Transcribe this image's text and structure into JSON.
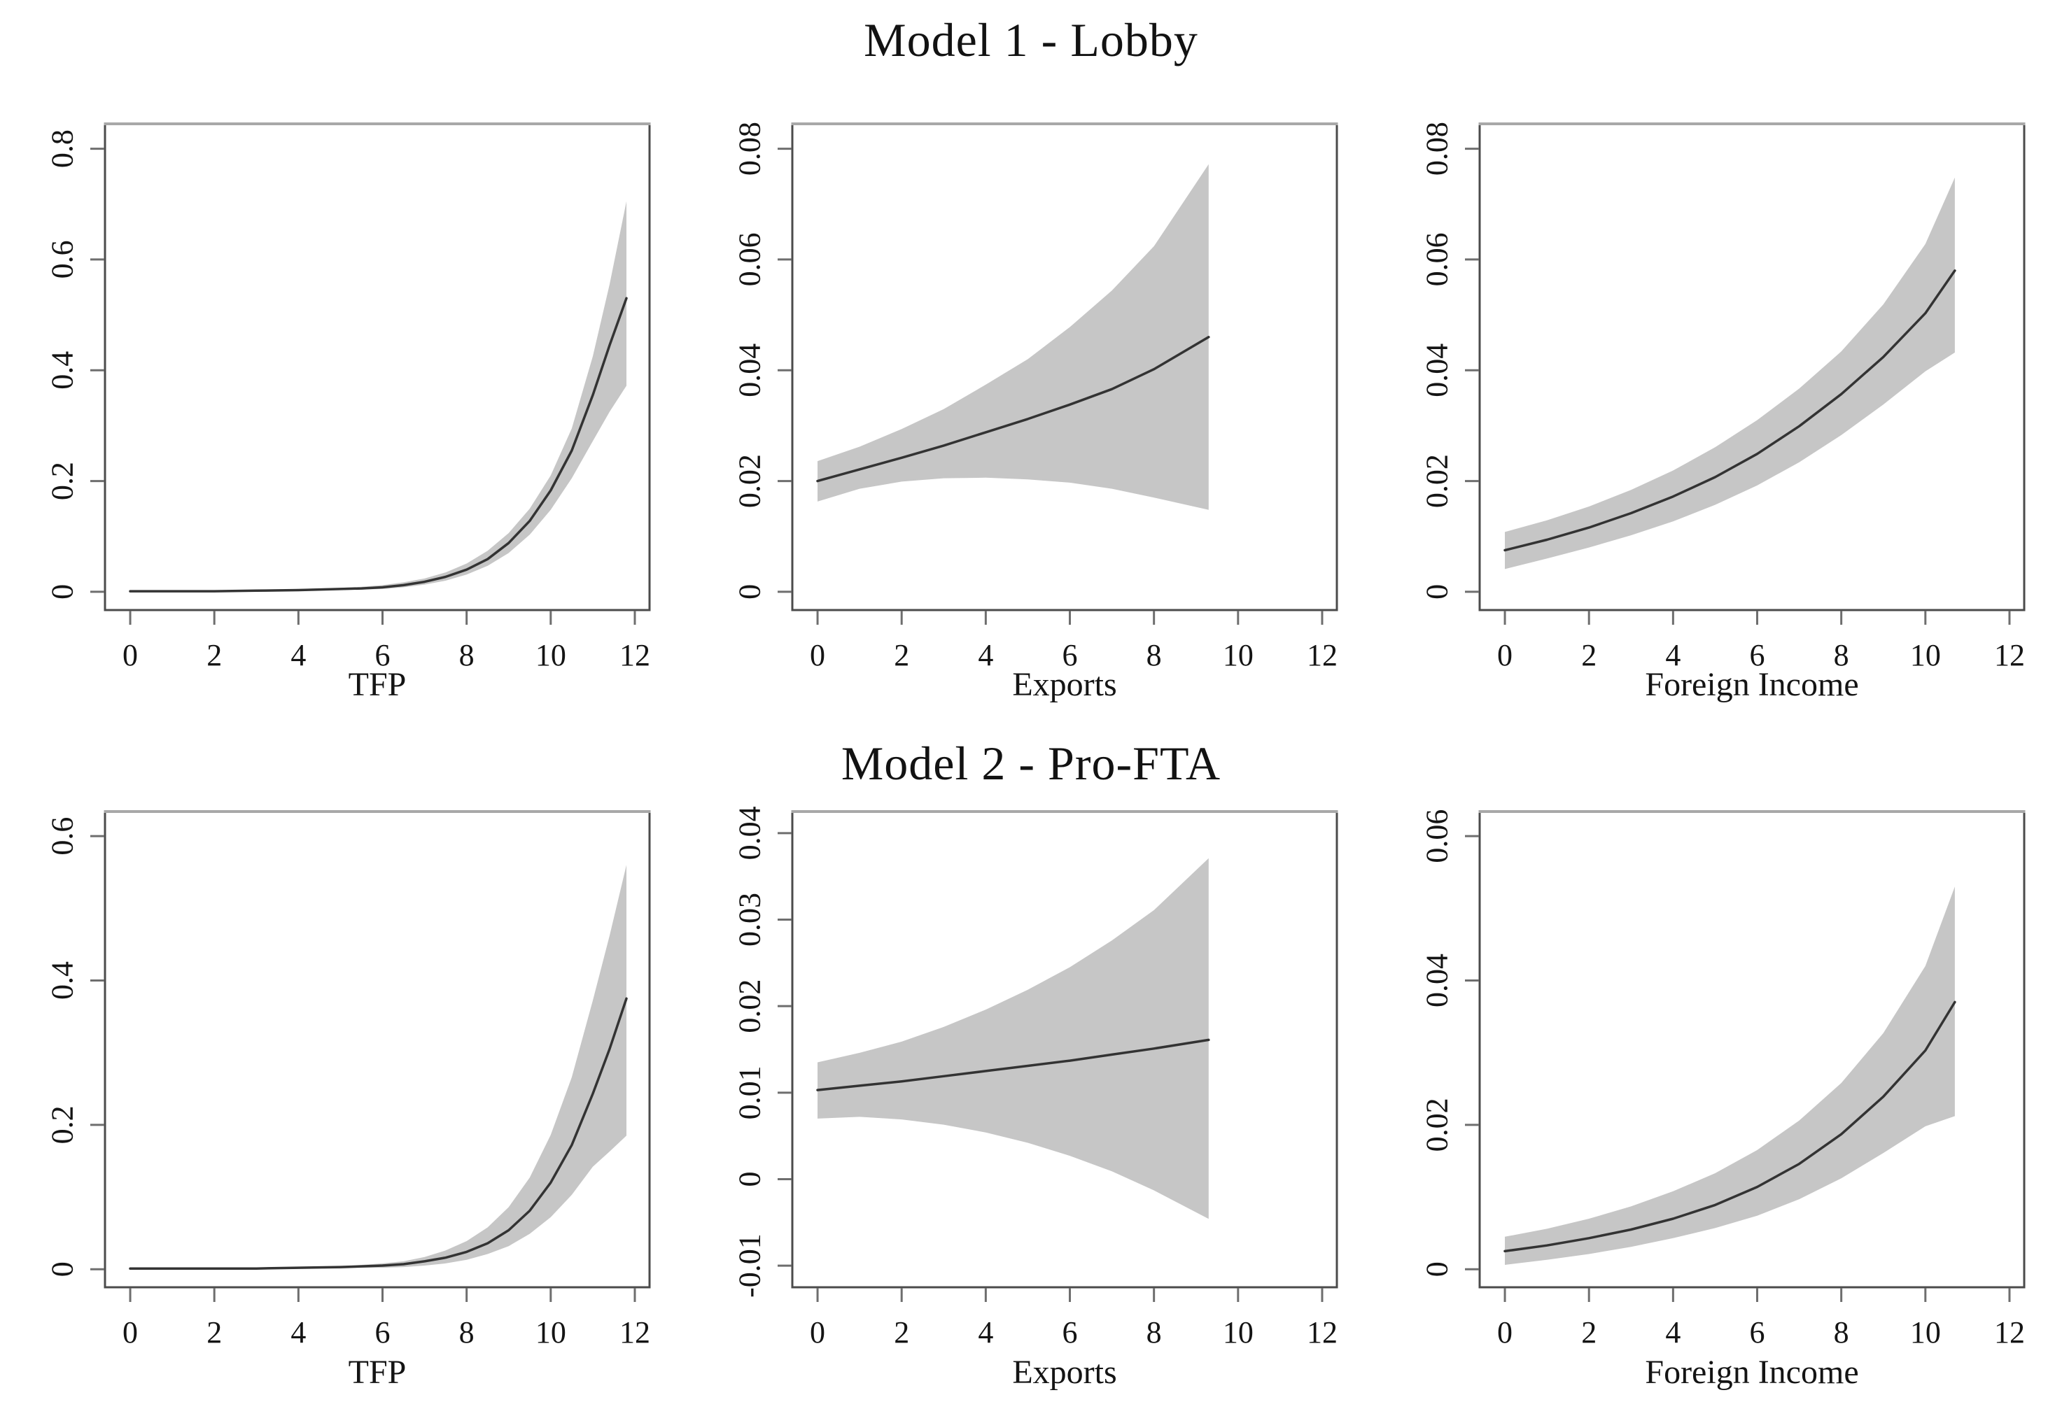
{
  "figure": {
    "row_titles": [
      "Model 1 - Lobby",
      "Model 2 - Pro-FTA"
    ]
  },
  "colors": {
    "band": "#c6c6c6",
    "line": "#333333",
    "box": "#4b4b4b",
    "box_top": "#a8a8a8",
    "tick": "#6e6e6e",
    "text": "#141414",
    "background": "#ffffff"
  },
  "chart_data": [
    {
      "type": "line",
      "model": "Model 1 - Lobby",
      "row": 0,
      "col": 0,
      "xlabel": "TFP",
      "ylabel": "",
      "xlim": [
        -0.6,
        12.35
      ],
      "ylim": [
        -0.033,
        0.845
      ],
      "xticks": [
        0,
        2,
        4,
        6,
        8,
        10,
        12
      ],
      "xtick_labels": [
        "0",
        "2",
        "4",
        "6",
        "8",
        "10",
        "12"
      ],
      "yticks": [
        0,
        0.2,
        0.4,
        0.6,
        0.8
      ],
      "ytick_labels": [
        "0",
        "0.2",
        "0.4",
        "0.6",
        "0.8"
      ],
      "band_meaning": "confidence band",
      "series": {
        "x": [
          0,
          1,
          2,
          3,
          4,
          5,
          5.5,
          6,
          6.5,
          7,
          7.5,
          8,
          8.5,
          9,
          9.5,
          10,
          10.5,
          11,
          11.4,
          11.8
        ],
        "mean": [
          0.001,
          0.001,
          0.001,
          0.002,
          0.003,
          0.005,
          0.006,
          0.008,
          0.012,
          0.018,
          0.027,
          0.04,
          0.059,
          0.088,
          0.128,
          0.183,
          0.255,
          0.355,
          0.445,
          0.53
        ],
        "upper": [
          0.002,
          0.002,
          0.002,
          0.003,
          0.005,
          0.007,
          0.009,
          0.012,
          0.017,
          0.024,
          0.035,
          0.051,
          0.074,
          0.106,
          0.15,
          0.21,
          0.295,
          0.425,
          0.555,
          0.705
        ],
        "lower": [
          0.0,
          0.0,
          0.0,
          0.001,
          0.002,
          0.003,
          0.004,
          0.005,
          0.008,
          0.013,
          0.02,
          0.031,
          0.047,
          0.07,
          0.103,
          0.148,
          0.205,
          0.272,
          0.325,
          0.372
        ]
      }
    },
    {
      "type": "line",
      "model": "Model 1 - Lobby",
      "row": 0,
      "col": 1,
      "xlabel": "Exports",
      "ylabel": "",
      "xlim": [
        -0.6,
        12.35
      ],
      "ylim": [
        -0.0033,
        0.0845
      ],
      "xticks": [
        0,
        2,
        4,
        6,
        8,
        10,
        12
      ],
      "xtick_labels": [
        "0",
        "2",
        "4",
        "6",
        "8",
        "10",
        "12"
      ],
      "yticks": [
        0,
        0.02,
        0.04,
        0.06,
        0.08
      ],
      "ytick_labels": [
        "0",
        "0.02",
        "0.04",
        "0.06",
        "0.08"
      ],
      "band_meaning": "confidence band",
      "series": {
        "x": [
          0,
          1,
          2,
          3,
          4,
          5,
          6,
          7,
          8,
          9.3
        ],
        "mean": [
          0.02,
          0.0221,
          0.0242,
          0.0264,
          0.0288,
          0.0312,
          0.0338,
          0.0366,
          0.0402,
          0.046
        ],
        "upper": [
          0.0236,
          0.0262,
          0.0294,
          0.033,
          0.0374,
          0.042,
          0.0478,
          0.0544,
          0.0624,
          0.0772
        ],
        "lower": [
          0.0163,
          0.0186,
          0.0199,
          0.0205,
          0.0206,
          0.0203,
          0.0197,
          0.0186,
          0.017,
          0.0148
        ]
      }
    },
    {
      "type": "line",
      "model": "Model 1 - Lobby",
      "row": 0,
      "col": 2,
      "xlabel": "Foreign Income",
      "ylabel": "",
      "xlim": [
        -0.6,
        12.35
      ],
      "ylim": [
        -0.0033,
        0.0845
      ],
      "xticks": [
        0,
        2,
        4,
        6,
        8,
        10,
        12
      ],
      "xtick_labels": [
        "0",
        "2",
        "4",
        "6",
        "8",
        "10",
        "12"
      ],
      "yticks": [
        0,
        0.02,
        0.04,
        0.06,
        0.08
      ],
      "ytick_labels": [
        "0",
        "0.02",
        "0.04",
        "0.06",
        "0.08"
      ],
      "band_meaning": "confidence band",
      "series": {
        "x": [
          0,
          1,
          2,
          3,
          4,
          5,
          6,
          7,
          8,
          9,
          10,
          10.7
        ],
        "mean": [
          0.0075,
          0.0094,
          0.0116,
          0.0142,
          0.0172,
          0.0207,
          0.0249,
          0.0299,
          0.0357,
          0.0424,
          0.0503,
          0.058
        ],
        "upper": [
          0.0108,
          0.0129,
          0.0154,
          0.0184,
          0.0219,
          0.0261,
          0.031,
          0.0367,
          0.0434,
          0.0519,
          0.0628,
          0.0748
        ],
        "lower": [
          0.0041,
          0.006,
          0.008,
          0.0102,
          0.0127,
          0.0157,
          0.0192,
          0.0234,
          0.0283,
          0.0338,
          0.0398,
          0.0432
        ]
      }
    },
    {
      "type": "line",
      "model": "Model 2 - Pro-FTA",
      "row": 1,
      "col": 0,
      "xlabel": "TFP",
      "ylabel": "",
      "xlim": [
        -0.6,
        12.35
      ],
      "ylim": [
        -0.025,
        0.634
      ],
      "xticks": [
        0,
        2,
        4,
        6,
        8,
        10,
        12
      ],
      "xtick_labels": [
        "0",
        "2",
        "4",
        "6",
        "8",
        "10",
        "12"
      ],
      "yticks": [
        0,
        0.2,
        0.4,
        0.6
      ],
      "ytick_labels": [
        "0",
        "0.2",
        "0.4",
        "0.6"
      ],
      "band_meaning": "confidence band",
      "series": {
        "x": [
          0,
          1,
          2,
          3,
          4,
          5,
          5.5,
          6,
          6.5,
          7,
          7.5,
          8,
          8.5,
          9,
          9.5,
          10,
          10.5,
          11,
          11.4,
          11.8
        ],
        "mean": [
          0.001,
          0.001,
          0.001,
          0.001,
          0.002,
          0.003,
          0.004,
          0.005,
          0.007,
          0.011,
          0.016,
          0.024,
          0.036,
          0.054,
          0.081,
          0.12,
          0.172,
          0.243,
          0.305,
          0.375
        ],
        "upper": [
          0.002,
          0.002,
          0.002,
          0.002,
          0.003,
          0.004,
          0.006,
          0.008,
          0.011,
          0.017,
          0.026,
          0.039,
          0.058,
          0.086,
          0.127,
          0.186,
          0.266,
          0.372,
          0.462,
          0.56
        ],
        "lower": [
          0.0,
          0.0,
          0.0,
          0.0,
          0.001,
          0.001,
          0.002,
          0.002,
          0.003,
          0.005,
          0.008,
          0.013,
          0.021,
          0.032,
          0.049,
          0.072,
          0.103,
          0.142,
          0.163,
          0.185
        ]
      }
    },
    {
      "type": "line",
      "model": "Model 2 - Pro-FTA",
      "row": 1,
      "col": 1,
      "xlabel": "Exports",
      "ylabel": "",
      "xlim": [
        -0.6,
        12.35
      ],
      "ylim": [
        -0.0125,
        0.0425
      ],
      "xticks": [
        0,
        2,
        4,
        6,
        8,
        10,
        12
      ],
      "xtick_labels": [
        "0",
        "2",
        "4",
        "6",
        "8",
        "10",
        "12"
      ],
      "yticks": [
        -0.01,
        0,
        0.01,
        0.02,
        0.03,
        0.04
      ],
      "ytick_labels": [
        "-0.01",
        "0",
        "0.01",
        "0.02",
        "0.03",
        "0.04"
      ],
      "band_meaning": "confidence band",
      "series": {
        "x": [
          0,
          1,
          2,
          3,
          4,
          5,
          6,
          7,
          8,
          9.3
        ],
        "mean": [
          0.0103,
          0.0108,
          0.0113,
          0.0119,
          0.0125,
          0.0131,
          0.0137,
          0.0144,
          0.0151,
          0.0161
        ],
        "upper": [
          0.0135,
          0.0146,
          0.0159,
          0.0176,
          0.0196,
          0.0219,
          0.0245,
          0.0276,
          0.0311,
          0.0371
        ],
        "lower": [
          0.007,
          0.0072,
          0.0069,
          0.0063,
          0.0054,
          0.0042,
          0.0027,
          0.0009,
          -0.0013,
          -0.0046
        ]
      }
    },
    {
      "type": "line",
      "model": "Model 2 - Pro-FTA",
      "row": 1,
      "col": 2,
      "xlabel": "Foreign Income",
      "ylabel": "",
      "xlim": [
        -0.6,
        12.35
      ],
      "ylim": [
        -0.0025,
        0.0634
      ],
      "xticks": [
        0,
        2,
        4,
        6,
        8,
        10,
        12
      ],
      "xtick_labels": [
        "0",
        "2",
        "4",
        "6",
        "8",
        "10",
        "12"
      ],
      "yticks": [
        0,
        0.02,
        0.04,
        0.06
      ],
      "ytick_labels": [
        "0",
        "0.02",
        "0.04",
        "0.06"
      ],
      "band_meaning": "confidence band",
      "series": {
        "x": [
          0,
          1,
          2,
          3,
          4,
          5,
          6,
          7,
          8,
          9,
          10,
          10.7
        ],
        "mean": [
          0.0025,
          0.0033,
          0.0043,
          0.0055,
          0.007,
          0.0089,
          0.0114,
          0.0146,
          0.0187,
          0.0239,
          0.0303,
          0.037
        ],
        "upper": [
          0.0045,
          0.0056,
          0.007,
          0.0087,
          0.0108,
          0.0133,
          0.0165,
          0.0206,
          0.0258,
          0.0327,
          0.042,
          0.053
        ],
        "lower": [
          0.0006,
          0.0013,
          0.0021,
          0.0031,
          0.0043,
          0.0057,
          0.0074,
          0.0097,
          0.0126,
          0.0161,
          0.0198,
          0.0212
        ]
      }
    }
  ]
}
